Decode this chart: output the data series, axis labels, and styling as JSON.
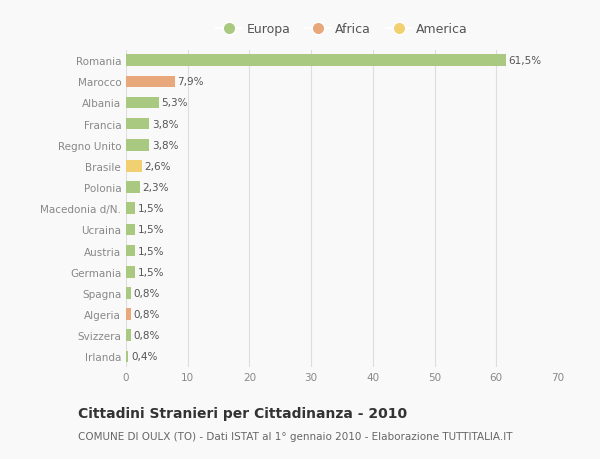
{
  "categories": [
    "Romania",
    "Marocco",
    "Albania",
    "Francia",
    "Regno Unito",
    "Brasile",
    "Polonia",
    "Macedonia d/N.",
    "Ucraina",
    "Austria",
    "Germania",
    "Spagna",
    "Algeria",
    "Svizzera",
    "Irlanda"
  ],
  "values": [
    61.5,
    7.9,
    5.3,
    3.8,
    3.8,
    2.6,
    2.3,
    1.5,
    1.5,
    1.5,
    1.5,
    0.8,
    0.8,
    0.8,
    0.4
  ],
  "labels": [
    "61,5%",
    "7,9%",
    "5,3%",
    "3,8%",
    "3,8%",
    "2,6%",
    "2,3%",
    "1,5%",
    "1,5%",
    "1,5%",
    "1,5%",
    "0,8%",
    "0,8%",
    "0,8%",
    "0,4%"
  ],
  "colors": [
    "#a8c97f",
    "#e8a87c",
    "#a8c97f",
    "#a8c97f",
    "#a8c97f",
    "#f0d070",
    "#a8c97f",
    "#a8c97f",
    "#a8c97f",
    "#a8c97f",
    "#a8c97f",
    "#a8c97f",
    "#e8a87c",
    "#a8c97f",
    "#a8c97f"
  ],
  "legend_labels": [
    "Europa",
    "Africa",
    "America"
  ],
  "legend_colors": [
    "#a8c97f",
    "#e8a87c",
    "#f0d070"
  ],
  "title": "Cittadini Stranieri per Cittadinanza - 2010",
  "subtitle": "COMUNE DI OULX (TO) - Dati ISTAT al 1° gennaio 2010 - Elaborazione TUTTITALIA.IT",
  "xlim": [
    0,
    70
  ],
  "xticks": [
    0,
    10,
    20,
    30,
    40,
    50,
    60,
    70
  ],
  "background_color": "#f9f9f9",
  "grid_color": "#dddddd",
  "bar_height": 0.55,
  "label_fontsize": 7.5,
  "tick_fontsize": 7.5,
  "title_fontsize": 10,
  "subtitle_fontsize": 7.5
}
